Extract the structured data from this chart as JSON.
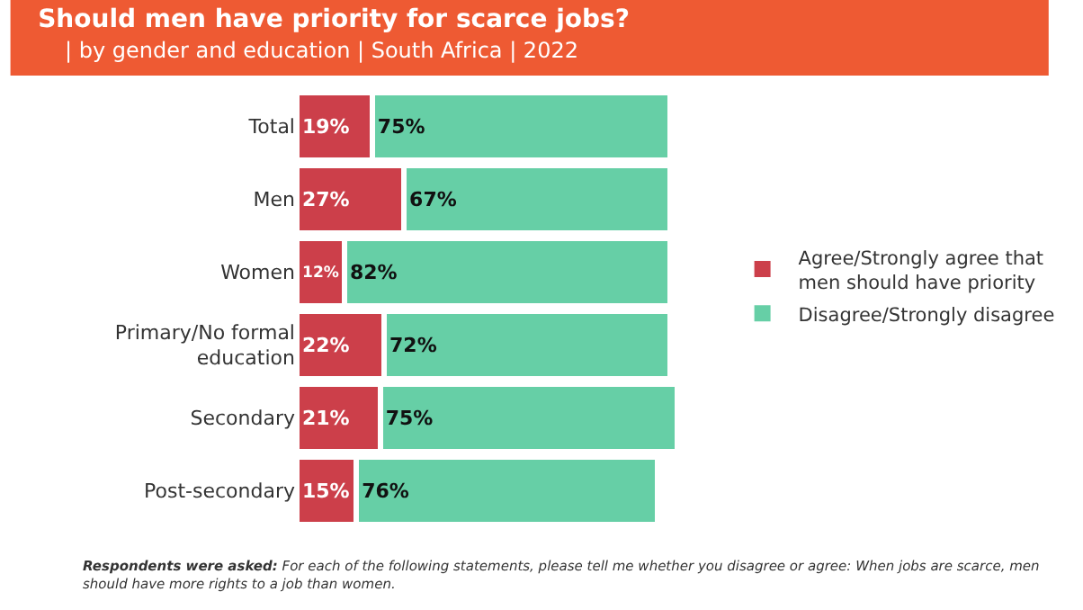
{
  "chart_data": {
    "type": "bar",
    "orientation": "horizontal",
    "stacked": true,
    "title": "Should men have priority for scarce jobs?",
    "subtitle": "| by gender and education | South Africa | 2022",
    "categories": [
      "Total",
      "Men",
      "Women",
      "Primary/No formal education",
      "Secondary",
      "Post-secondary"
    ],
    "series": [
      {
        "name": "Agree/Strongly agree that men should have priority",
        "color": "#cc3f4a",
        "values": [
          19,
          27,
          12,
          22,
          21,
          15
        ],
        "value_labels": [
          "19%",
          "27%",
          "12%",
          "22%",
          "21%",
          "15%"
        ]
      },
      {
        "name": "Disagree/Strongly disagree",
        "color": "#66cfa6",
        "values": [
          75,
          67,
          82,
          72,
          75,
          76
        ],
        "value_labels": [
          "75%",
          "67%",
          "82%",
          "72%",
          "75%",
          "76%"
        ]
      }
    ],
    "legend": "right",
    "annotations": [
      "Respondents were asked: For each of the following statements, please tell me whether you disagree or agree: When jobs are scarce, men should have more rights to a job than women."
    ]
  }
}
